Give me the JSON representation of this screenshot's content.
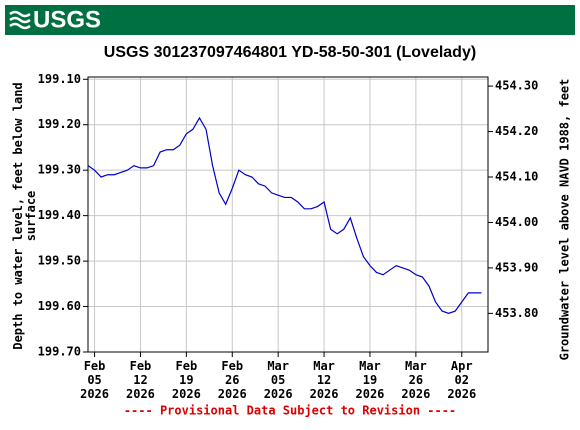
{
  "logo": "USGS",
  "chart_data": {
    "type": "line",
    "title": "USGS 301237097464801 YD-58-50-301 (Lovelady)",
    "ylabel": "Depth to water level, feet below land surface",
    "y2label": "Groundwater level above NAVD 1988, feet",
    "footnote": "---- Provisional Data Subject to Revision ----",
    "x": [
      "2026-02-04",
      "2026-02-05",
      "2026-02-06",
      "2026-02-07",
      "2026-02-08",
      "2026-02-09",
      "2026-02-10",
      "2026-02-11",
      "2026-02-12",
      "2026-02-13",
      "2026-02-14",
      "2026-02-15",
      "2026-02-16",
      "2026-02-17",
      "2026-02-18",
      "2026-02-19",
      "2026-02-20",
      "2026-02-21",
      "2026-02-22",
      "2026-02-23",
      "2026-02-24",
      "2026-02-25",
      "2026-02-26",
      "2026-02-27",
      "2026-02-28",
      "2026-03-01",
      "2026-03-02",
      "2026-03-03",
      "2026-03-04",
      "2026-03-05",
      "2026-03-06",
      "2026-03-07",
      "2026-03-08",
      "2026-03-09",
      "2026-03-10",
      "2026-03-11",
      "2026-03-12",
      "2026-03-13",
      "2026-03-14",
      "2026-03-15",
      "2026-03-16",
      "2026-03-17",
      "2026-03-18",
      "2026-03-19",
      "2026-03-20",
      "2026-03-21",
      "2026-03-22",
      "2026-03-23",
      "2026-03-24",
      "2026-03-25",
      "2026-03-26",
      "2026-03-27",
      "2026-03-28",
      "2026-03-29",
      "2026-03-30",
      "2026-03-31",
      "2026-04-01",
      "2026-04-02",
      "2026-04-03",
      "2026-04-04",
      "2026-04-05"
    ],
    "series": [
      {
        "name": "Depth to water level",
        "color": "#0000cc",
        "values": [
          199.29,
          199.3,
          199.315,
          199.31,
          199.31,
          199.305,
          199.3,
          199.29,
          199.295,
          199.295,
          199.29,
          199.26,
          199.255,
          199.255,
          199.245,
          199.22,
          199.21,
          199.185,
          199.21,
          199.29,
          199.35,
          199.375,
          199.34,
          199.3,
          199.31,
          199.315,
          199.33,
          199.335,
          199.35,
          199.355,
          199.36,
          199.36,
          199.37,
          199.385,
          199.385,
          199.38,
          199.37,
          199.43,
          199.44,
          199.43,
          199.405,
          199.45,
          199.49,
          199.51,
          199.525,
          199.53,
          199.52,
          199.51,
          199.515,
          199.52,
          199.53,
          199.535,
          199.555,
          199.59,
          199.61,
          199.615,
          199.61,
          199.59,
          199.57,
          199.57,
          199.57
        ]
      }
    ],
    "xlim": [
      "2026-02-04",
      "2026-04-06"
    ],
    "xticks": [
      {
        "value": "2026-02-05",
        "label": "Feb 05 2026"
      },
      {
        "value": "2026-02-12",
        "label": "Feb 12 2026"
      },
      {
        "value": "2026-02-19",
        "label": "Feb 19 2026"
      },
      {
        "value": "2026-02-26",
        "label": "Feb 26 2026"
      },
      {
        "value": "2026-03-05",
        "label": "Mar 05 2026"
      },
      {
        "value": "2026-03-12",
        "label": "Mar 12 2026"
      },
      {
        "value": "2026-03-19",
        "label": "Mar 19 2026"
      },
      {
        "value": "2026-03-26",
        "label": "Mar 26 2026"
      },
      {
        "value": "2026-04-02",
        "label": "Apr 02 2026"
      }
    ],
    "ylim": [
      199.095,
      199.7
    ],
    "yinverted": true,
    "yticks": [
      {
        "value": 199.1,
        "label": "199.10"
      },
      {
        "value": 199.2,
        "label": "199.20"
      },
      {
        "value": 199.3,
        "label": "199.30"
      },
      {
        "value": 199.4,
        "label": "199.40"
      },
      {
        "value": 199.5,
        "label": "199.50"
      },
      {
        "value": 199.6,
        "label": "199.60"
      },
      {
        "value": 199.7,
        "label": "199.70"
      }
    ],
    "y2lim": [
      453.715,
      454.32
    ],
    "y2ticks": [
      {
        "value": 453.8,
        "label": "453.80"
      },
      {
        "value": 453.9,
        "label": "453.90"
      },
      {
        "value": 454.0,
        "label": "454.00"
      },
      {
        "value": 454.1,
        "label": "454.10"
      },
      {
        "value": 454.2,
        "label": "454.20"
      },
      {
        "value": 454.3,
        "label": "454.30"
      }
    ],
    "grid": true
  }
}
